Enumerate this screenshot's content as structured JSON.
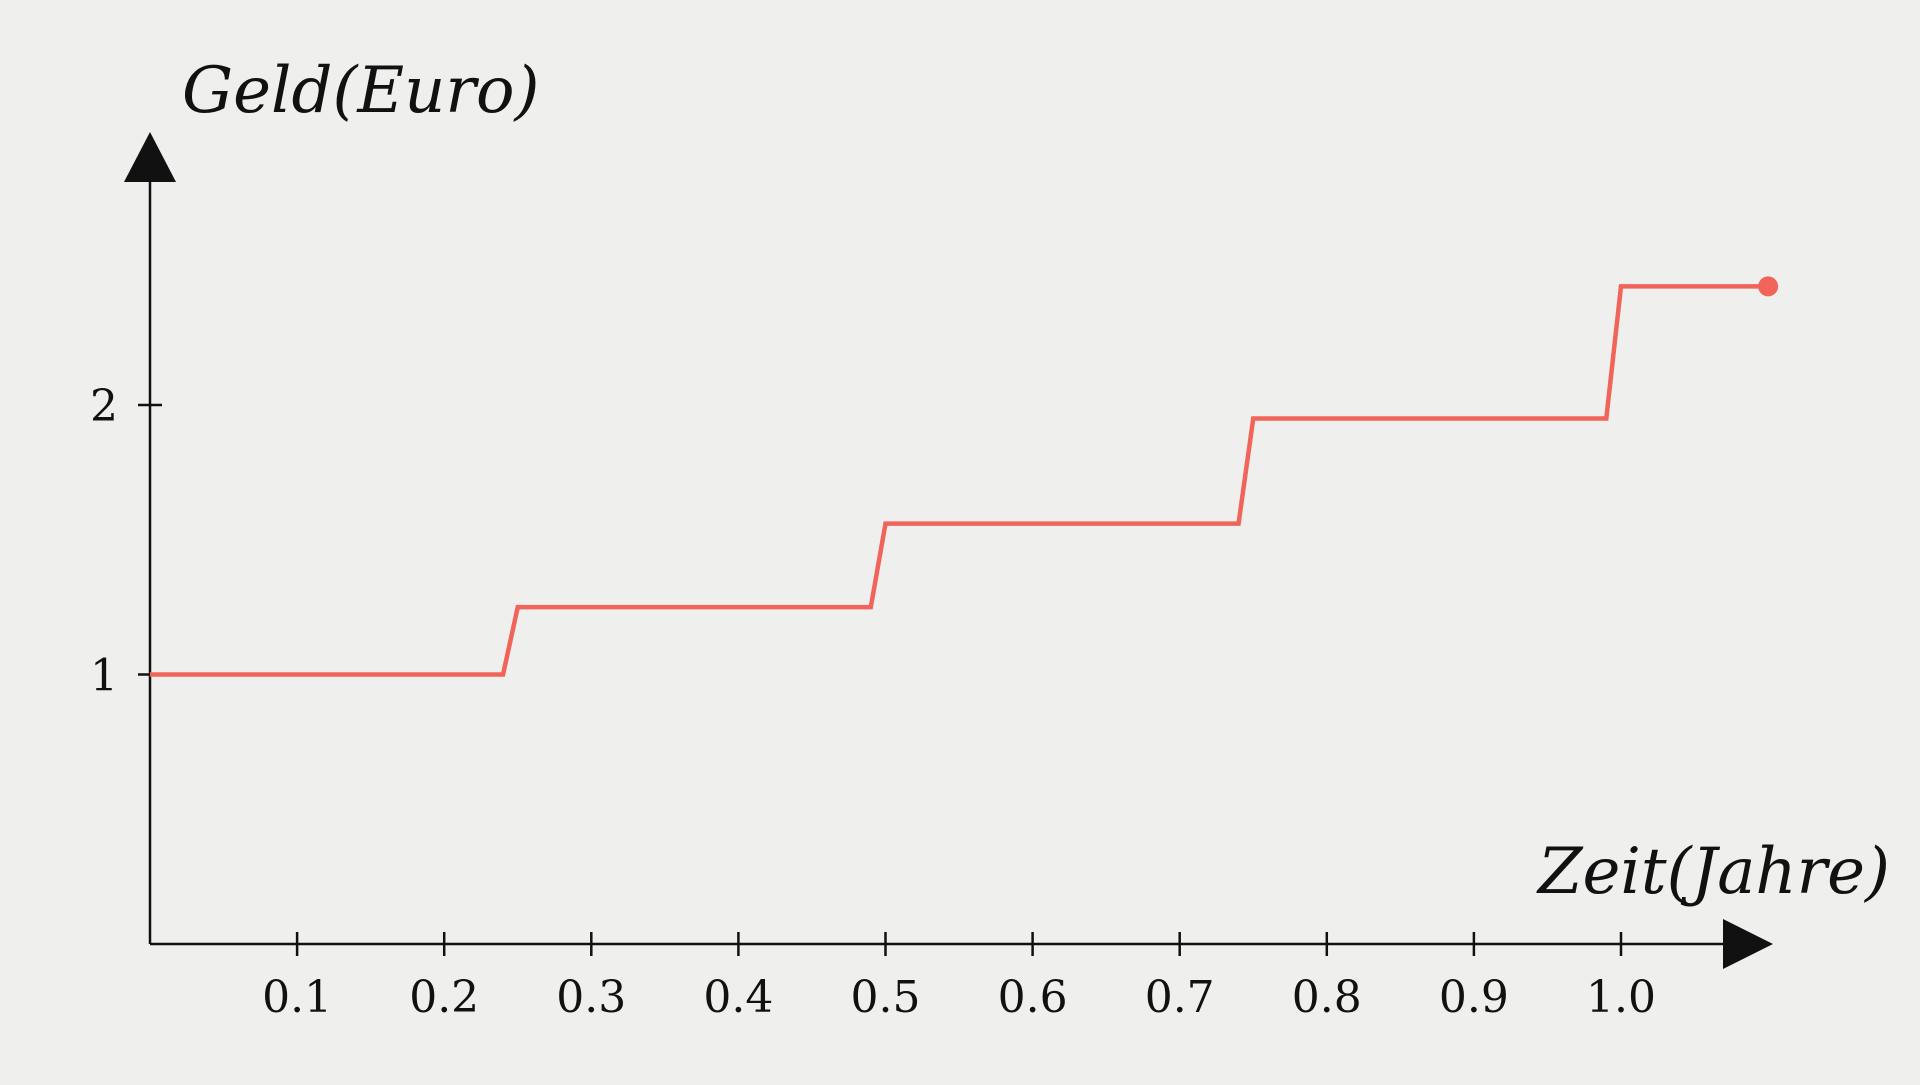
{
  "colors": {
    "background": "#efefed",
    "axis": "#111111",
    "series": "#f0645a"
  },
  "chart_data": {
    "type": "line",
    "title": "",
    "xlabel": "Zeit(Jahre)",
    "ylabel": "Geld(Euro)",
    "xlim": [
      0,
      1.1
    ],
    "ylim": [
      0,
      2.9
    ],
    "x_ticks": [
      0.1,
      0.2,
      0.3,
      0.4,
      0.5,
      0.6,
      0.7,
      0.8,
      0.9,
      1.0
    ],
    "x_tick_labels": [
      "0.1",
      "0.2",
      "0.3",
      "0.4",
      "0.5",
      "0.6",
      "0.7",
      "0.8",
      "0.9",
      "1.0"
    ],
    "y_ticks": [
      1,
      2
    ],
    "y_tick_labels": [
      "1",
      "2"
    ],
    "grid": false,
    "legend": "none",
    "series": [
      {
        "name": "Geld",
        "x": [
          0,
          0.24,
          0.25,
          0.49,
          0.5,
          0.74,
          0.75,
          0.99,
          1.0,
          1.1
        ],
        "y": [
          1.0,
          1.0,
          1.25,
          1.25,
          1.56,
          1.56,
          1.95,
          1.95,
          2.44,
          2.44
        ],
        "end_marker": true
      }
    ]
  }
}
